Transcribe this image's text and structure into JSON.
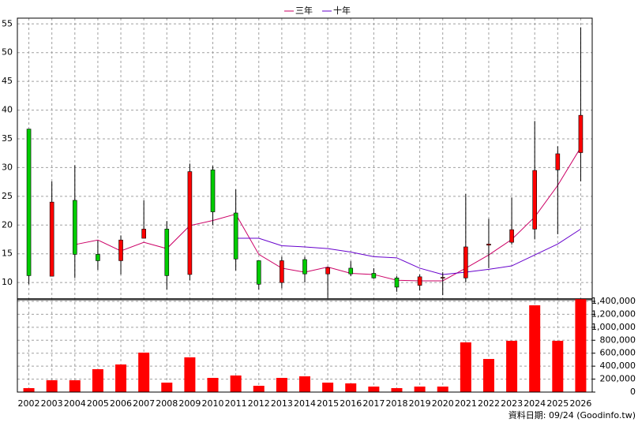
{
  "chart_data": [
    {
      "type": "candlestick",
      "open": [
        36.7,
        11.1,
        24.3,
        14.9,
        13.8,
        17.7,
        19.3,
        11.4,
        29.6,
        22.1,
        13.8,
        10.0,
        14.0,
        11.5,
        12.5,
        11.6,
        10.8,
        9.5,
        10.8,
        10.8,
        16.5,
        17.0,
        19.3,
        29.6,
        32.6
      ],
      "high": [
        36.7,
        27.6,
        30.4,
        17.3,
        18.2,
        24.3,
        20.7,
        30.7,
        30.3,
        26.2,
        13.8,
        14.5,
        14.5,
        12.7,
        13.7,
        12.5,
        11.1,
        11.4,
        11.8,
        25.4,
        21.1,
        24.8,
        38.1,
        33.7,
        54.4
      ],
      "low": [
        9.7,
        11.1,
        10.8,
        12.2,
        11.4,
        17.7,
        8.8,
        10.4,
        20.0,
        12.1,
        8.8,
        9.0,
        10.0,
        7.3,
        11.1,
        10.7,
        8.4,
        8.6,
        7.8,
        10.0,
        12.5,
        16.6,
        17.5,
        18.4,
        27.6
      ],
      "close": [
        11.2,
        24.0,
        14.9,
        13.8,
        17.4,
        19.3,
        11.2,
        29.3,
        22.3,
        14.1,
        9.7,
        13.8,
        11.5,
        12.6,
        11.5,
        10.8,
        9.2,
        11.0,
        10.9,
        16.2,
        16.7,
        19.2,
        29.5,
        32.4,
        39.1
      ],
      "up_color": "#ff0000",
      "down_color": "#00cc00",
      "series": [
        {
          "name": "三年",
          "color": "#cc0066",
          "values": [
            null,
            null,
            16.6,
            17.4,
            15.5,
            17.0,
            15.9,
            19.9,
            20.8,
            21.9,
            14.9,
            12.5,
            11.8,
            12.7,
            11.6,
            11.4,
            10.4,
            10.3,
            10.3,
            12.5,
            14.8,
            17.5,
            21.4,
            26.9,
            33.5
          ]
        },
        {
          "name": "十年",
          "color": "#6600cc",
          "values": [
            null,
            null,
            null,
            null,
            null,
            null,
            null,
            null,
            null,
            17.7,
            17.7,
            16.4,
            16.2,
            15.9,
            15.3,
            14.5,
            14.3,
            12.5,
            11.4,
            11.8,
            12.3,
            12.9,
            14.8,
            16.7,
            19.3
          ]
        }
      ],
      "ylim": [
        7,
        56
      ],
      "yticks": [
        10,
        15,
        20,
        25,
        30,
        35,
        40,
        45,
        50,
        55
      ],
      "grid": true,
      "legend": "top"
    },
    {
      "type": "bar",
      "categories": [
        "2002",
        "2003",
        "2004",
        "2005",
        "2006",
        "2007",
        "2008",
        "2009",
        "2010",
        "2011",
        "2012",
        "2013",
        "2014",
        "2015",
        "2016",
        "2017",
        "2018",
        "2019",
        "2020",
        "2021",
        "2022",
        "2023",
        "2024",
        "2025",
        "2026"
      ],
      "values": [
        61000,
        183000,
        183000,
        353000,
        426000,
        609000,
        146000,
        536000,
        219000,
        256000,
        97000,
        219000,
        243000,
        146000,
        134000,
        85000,
        61000,
        85000,
        85000,
        767000,
        511000,
        791000,
        1339000,
        791000,
        1436000
      ],
      "color": "#ff0000",
      "ylim": [
        0,
        1440000
      ],
      "yticks": [
        0,
        {
          "value": 200000,
          "label": "200,000"
        },
        {
          "value": 400000,
          "label": "400,000"
        },
        {
          "value": 600000,
          "label": "600,000"
        },
        {
          "value": 800000,
          "label": "800,000"
        },
        {
          "value": 1000000,
          "label": "1,000,000"
        },
        {
          "value": 1200000,
          "label": "1,200,000"
        },
        {
          "value": 1400000,
          "label": "1,400,000"
        }
      ],
      "grid": true,
      "footnote": "資料日期: 09/24 (Goodinfo.tw)"
    }
  ]
}
